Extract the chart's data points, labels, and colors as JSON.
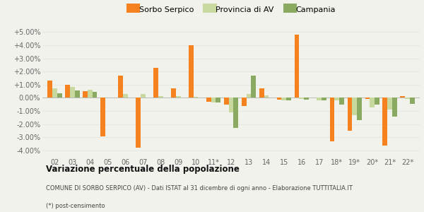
{
  "categories": [
    "02",
    "03",
    "04",
    "05",
    "06",
    "07",
    "08",
    "09",
    "10",
    "11*",
    "12",
    "13",
    "14",
    "15",
    "16",
    "17",
    "18*",
    "19*",
    "20*",
    "21*",
    "22*"
  ],
  "sorbo": [
    1.3,
    1.0,
    0.5,
    -2.9,
    1.7,
    -3.8,
    2.3,
    0.7,
    4.0,
    -0.3,
    -0.5,
    -0.6,
    0.7,
    -0.15,
    4.8,
    0.0,
    -3.3,
    -2.5,
    -0.1,
    -3.6,
    0.15
  ],
  "provincia": [
    0.7,
    0.85,
    0.6,
    0.0,
    0.3,
    0.3,
    0.15,
    0.15,
    0.1,
    -0.35,
    -1.1,
    0.3,
    0.2,
    -0.2,
    -0.1,
    -0.2,
    -0.2,
    -1.3,
    -0.7,
    -0.9,
    -0.1
  ],
  "campania": [
    0.35,
    0.55,
    0.45,
    0.0,
    0.0,
    0.0,
    0.0,
    0.0,
    0.0,
    -0.35,
    -2.3,
    1.7,
    0.0,
    -0.2,
    -0.15,
    -0.2,
    -0.5,
    -1.7,
    -0.5,
    -1.4,
    -0.45
  ],
  "sorbo_color": "#f5821f",
  "provincia_color": "#c8d9a0",
  "campania_color": "#8aaa62",
  "bg_color": "#f2f2ed",
  "grid_color": "#e8e8e3",
  "title": "Variazione percentuale della popolazione",
  "subtitle": "COMUNE DI SORBO SERPICO (AV) - Dati ISTAT al 31 dicembre di ogni anno - Elaborazione TUTTITALIA.IT",
  "note": "(*) post-censimento",
  "ylim": [
    -4.5,
    5.5
  ],
  "yticks": [
    -4.0,
    -3.0,
    -2.0,
    -1.0,
    0.0,
    1.0,
    2.0,
    3.0,
    4.0,
    5.0
  ],
  "legend_labels": [
    "Sorbo Serpico",
    "Provincia di AV",
    "Campania"
  ]
}
